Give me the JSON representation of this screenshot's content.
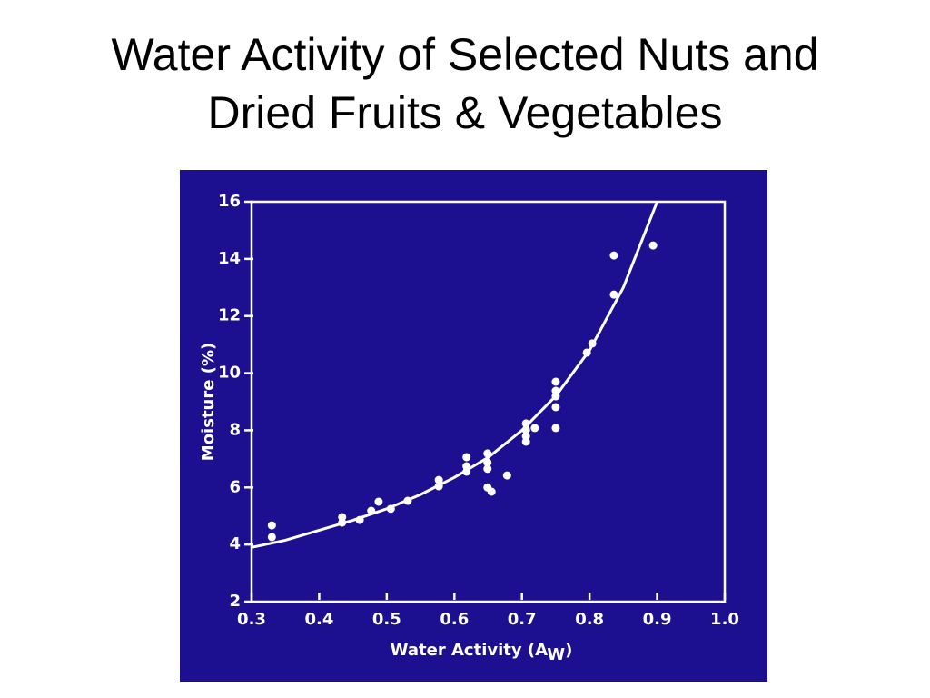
{
  "slide_title": [
    "Water Activity of Selected Nuts and",
    "Dried Fruits & Vegetables"
  ],
  "chart_data": {
    "type": "scatter",
    "x_label": "Water Activity (A",
    "x_label_sub": "W",
    "x_label_end": ")",
    "y_label": "Moisture (%)",
    "xlim": [
      0.3,
      1.0
    ],
    "ylim": [
      2,
      16
    ],
    "xticks": [
      0.3,
      0.4,
      0.5,
      0.6,
      0.7,
      0.8,
      0.9,
      {
        "value": 1.0,
        "label": "1.0"
      }
    ],
    "yticks": [
      2,
      4,
      6,
      8,
      10,
      12,
      14,
      16
    ],
    "grid": false,
    "background": "#1c1090",
    "series": [
      {
        "mode": "markers",
        "color": "#ffffff",
        "x": [
          0.33,
          0.33,
          0.434,
          0.434,
          0.46,
          0.477,
          0.488,
          0.506,
          0.531,
          0.577,
          0.577,
          0.618,
          0.618,
          0.618,
          0.649,
          0.649,
          0.649,
          0.649,
          0.655,
          0.678,
          0.706,
          0.706,
          0.706,
          0.706,
          0.719,
          0.75,
          0.75,
          0.75,
          0.75,
          0.75,
          0.796,
          0.804,
          0.836,
          0.836,
          0.894
        ],
        "values": [
          4.67,
          4.26,
          4.96,
          4.77,
          4.86,
          5.18,
          5.5,
          5.25,
          5.53,
          6.26,
          6.04,
          7.06,
          6.74,
          6.55,
          7.19,
          6.87,
          6.65,
          6.0,
          5.85,
          6.42,
          8.24,
          8.01,
          7.79,
          7.6,
          8.08,
          9.7,
          9.38,
          9.19,
          8.81,
          8.08,
          10.72,
          11.04,
          14.12,
          12.75,
          14.47
        ]
      },
      {
        "mode": "line",
        "color": "#ffffff",
        "x": [
          0.3,
          0.35,
          0.4,
          0.45,
          0.5,
          0.55,
          0.6,
          0.65,
          0.7,
          0.75,
          0.8,
          0.85,
          0.9
        ],
        "values": [
          3.9,
          4.15,
          4.5,
          4.85,
          5.25,
          5.75,
          6.35,
          7.05,
          8.0,
          9.2,
          10.8,
          13.0,
          16.0
        ]
      }
    ]
  }
}
